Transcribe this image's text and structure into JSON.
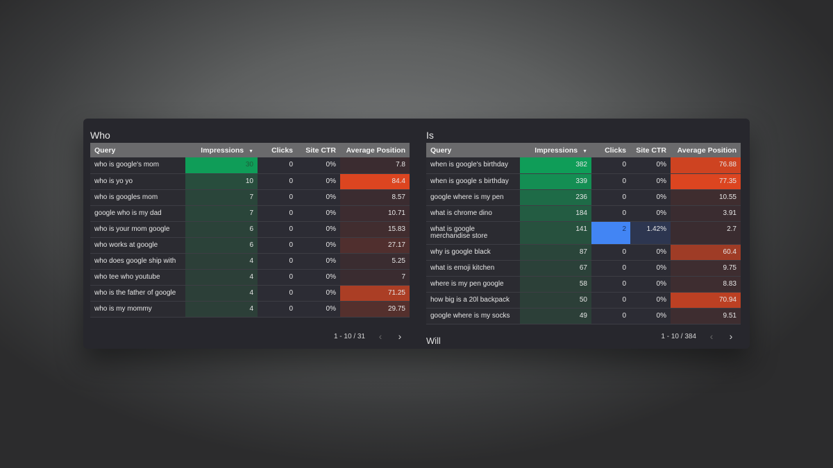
{
  "colors": {
    "impressions_max": "#0f9d58",
    "impressions_min": "#2c3f38",
    "position_max": "#dc4520",
    "position_min": "#3a2c30",
    "clicks_highlight": "#4285f4",
    "ctr_highlight": "#2d3650"
  },
  "columns": [
    "Query",
    "Impressions",
    "Clicks",
    "Site CTR",
    "Average Position"
  ],
  "sort_icon": "sort-descending-icon",
  "tables": [
    {
      "title": "Who",
      "pagination": "1 - 10 / 31",
      "rows": [
        [
          "who is google's mom",
          30,
          0,
          "0%",
          7.8
        ],
        [
          "who is yo yo",
          10,
          0,
          "0%",
          84.4
        ],
        [
          "who is googles mom",
          7,
          0,
          "0%",
          8.57
        ],
        [
          "google who is my dad",
          7,
          0,
          "0%",
          10.71
        ],
        [
          "who is your mom google",
          6,
          0,
          "0%",
          15.83
        ],
        [
          "who works at google",
          6,
          0,
          "0%",
          27.17
        ],
        [
          "who does google ship with",
          4,
          0,
          "0%",
          5.25
        ],
        [
          "who tee who youtube",
          4,
          0,
          "0%",
          7
        ],
        [
          "who is the father of google",
          4,
          0,
          "0%",
          71.25
        ],
        [
          "who is my mommy",
          4,
          0,
          "0%",
          29.75
        ]
      ]
    },
    {
      "title": "Is",
      "pagination": "1 - 10 / 384",
      "rows": [
        [
          "when is google's birthday",
          382,
          0,
          "0%",
          76.88
        ],
        [
          "when is google s birthday",
          339,
          0,
          "0%",
          77.35
        ],
        [
          "google where is my pen",
          236,
          0,
          "0%",
          10.55
        ],
        [
          "what is chrome dino",
          184,
          0,
          "0%",
          3.91
        ],
        [
          "what is google merchandise store",
          141,
          2,
          "1.42%",
          2.7
        ],
        [
          "why is google black",
          87,
          0,
          "0%",
          60.4
        ],
        [
          "what is emoji kitchen",
          67,
          0,
          "0%",
          9.75
        ],
        [
          "where is my pen google",
          58,
          0,
          "0%",
          8.83
        ],
        [
          "how big is a 20l backpack",
          50,
          0,
          "0%",
          70.94
        ],
        [
          "google where is my socks",
          49,
          0,
          "0%",
          9.51
        ]
      ]
    }
  ],
  "next_section_title": "Will"
}
